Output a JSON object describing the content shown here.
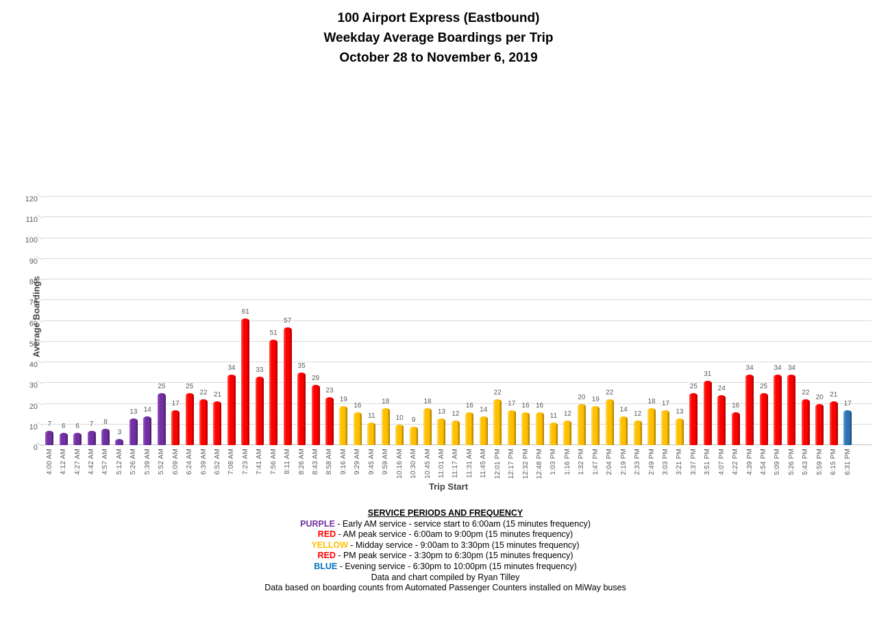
{
  "header": {
    "line1": "100 Airport Express (Eastbound)",
    "line2": "Weekday Average Boardings per Trip",
    "line3": "October 28 to November 6, 2019"
  },
  "chart_data": {
    "type": "bar",
    "title": "100 Airport Express (Eastbound) Weekday Average Boardings per Trip October 28 to November 6, 2019",
    "xlabel": "Trip Start",
    "ylabel": "Average Boardings",
    "ylim": [
      0,
      120
    ],
    "ytick_step": 10,
    "grid": true,
    "data_labels": true,
    "categories": [
      "4:00 AM",
      "4:12 AM",
      "4:27 AM",
      "4:42 AM",
      "4:57 AM",
      "5:12 AM",
      "5:26 AM",
      "5:39 AM",
      "5:52 AM",
      "6:09 AM",
      "6:24 AM",
      "6:39 AM",
      "6:52 AM",
      "7:08 AM",
      "7:23 AM",
      "7:41 AM",
      "7:56 AM",
      "8:11 AM",
      "8:26 AM",
      "8:43 AM",
      "8:58 AM",
      "9:16 AM",
      "9:29 AM",
      "9:45 AM",
      "9:59 AM",
      "10:16 AM",
      "10:30 AM",
      "10:45 AM",
      "11:01 AM",
      "11:17 AM",
      "11:31 AM",
      "11:45 AM",
      "12:01 PM",
      "12:17 PM",
      "12:32 PM",
      "12:48 PM",
      "1:03 PM",
      "1:16 PM",
      "1:32 PM",
      "1:47 PM",
      "2:04 PM",
      "2:19 PM",
      "2:33 PM",
      "2:49 PM",
      "3:03 PM",
      "3:21 PM",
      "3:37 PM",
      "3:51 PM",
      "4:07 PM",
      "4:22 PM",
      "4:39 PM",
      "4:54 PM",
      "5:09 PM",
      "5:26 PM",
      "5:43 PM",
      "5:59 PM",
      "6:15 PM",
      "6:31 PM"
    ],
    "values": [
      7,
      6,
      6,
      7,
      8,
      3,
      13,
      14,
      25,
      17,
      25,
      22,
      21,
      34,
      61,
      33,
      51,
      57,
      35,
      29,
      23,
      19,
      16,
      11,
      18,
      10,
      9,
      18,
      13,
      12,
      16,
      14,
      22,
      17,
      16,
      16,
      11,
      12,
      20,
      19,
      22,
      14,
      12,
      18,
      17,
      13,
      25,
      31,
      24,
      16,
      34,
      25,
      34,
      34,
      22,
      20,
      21,
      17
    ],
    "bar_periods": [
      "early_am",
      "early_am",
      "early_am",
      "early_am",
      "early_am",
      "early_am",
      "early_am",
      "early_am",
      "early_am",
      "am_peak",
      "am_peak",
      "am_peak",
      "am_peak",
      "am_peak",
      "am_peak",
      "am_peak",
      "am_peak",
      "am_peak",
      "am_peak",
      "am_peak",
      "am_peak",
      "midday",
      "midday",
      "midday",
      "midday",
      "midday",
      "midday",
      "midday",
      "midday",
      "midday",
      "midday",
      "midday",
      "midday",
      "midday",
      "midday",
      "midday",
      "midday",
      "midday",
      "midday",
      "midday",
      "midday",
      "midday",
      "midday",
      "midday",
      "midday",
      "midday",
      "pm_peak",
      "pm_peak",
      "pm_peak",
      "pm_peak",
      "pm_peak",
      "pm_peak",
      "pm_peak",
      "pm_peak",
      "pm_peak",
      "pm_peak",
      "pm_peak",
      "evening"
    ],
    "period_colors": {
      "early_am": {
        "main": "#7030A0",
        "light": "#9B59C8",
        "dark": "#471D68"
      },
      "am_peak": {
        "main": "#FE0000",
        "light": "#FF5B4D",
        "dark": "#9E0000"
      },
      "midday": {
        "main": "#FFC000",
        "light": "#FFD966",
        "dark": "#A87800"
      },
      "pm_peak": {
        "main": "#FE0000",
        "light": "#FF5B4D",
        "dark": "#9E0000"
      },
      "evening": {
        "main": "#2E75B6",
        "light": "#68A3D8",
        "dark": "#1C466E"
      }
    },
    "gridline_color": "#D9D9D9",
    "tick_label_color": "#595959",
    "data_label_color": "#595959"
  },
  "legend": {
    "title": "SERVICE PERIODS AND FREQUENCY",
    "items": [
      {
        "name": "PURPLE",
        "color": "#7030A0",
        "text": " - Early AM service - service start to 6:00am  (15 minutes frequency)"
      },
      {
        "name": "RED",
        "color": "#FF0000",
        "text": " - AM peak service - 6:00am to 9:00pm (15 minutes frequency)"
      },
      {
        "name": "YELLOW",
        "color": "#FFC000",
        "text": " - Midday service - 9:00am to 3:30pm (15 minutes frequency)"
      },
      {
        "name": "RED",
        "color": "#FF0000",
        "text": " - PM peak service - 3:30pm to 6:30pm (15 minutes frequency)"
      },
      {
        "name": "BLUE",
        "color": "#0070C0",
        "text": " - Evening service - 6:30pm to 10:00pm (15 minutes frequency)"
      }
    ],
    "credit1": "Data and chart compiled by Ryan Tilley",
    "credit2": "Data based on boarding counts from Automated Passenger Counters installed on MiWay buses"
  }
}
